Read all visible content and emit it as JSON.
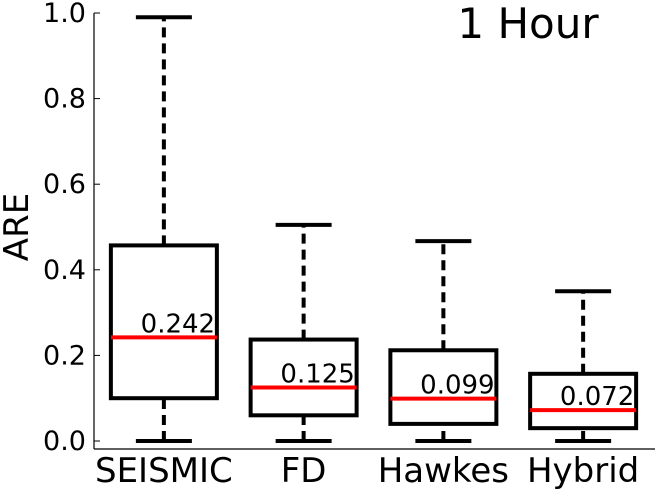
{
  "chart_data": {
    "type": "box",
    "title": "1 Hour",
    "xlabel": "",
    "ylabel": "ARE",
    "ylim": [
      0.0,
      1.0
    ],
    "yticks": [
      "0.0",
      "0.2",
      "0.4",
      "0.6",
      "0.8",
      "1.0"
    ],
    "grid": false,
    "categories": [
      "SEISMIC",
      "FD",
      "Hawkes",
      "Hybrid"
    ],
    "series": [
      {
        "category": "SEISMIC",
        "whisker_low": 0.0,
        "q1": 0.1,
        "median": 0.242,
        "q3": 0.457,
        "whisker_high": 0.99,
        "median_label": "0.242"
      },
      {
        "category": "FD",
        "whisker_low": 0.0,
        "q1": 0.06,
        "median": 0.125,
        "q3": 0.237,
        "whisker_high": 0.505,
        "median_label": "0.125"
      },
      {
        "category": "Hawkes",
        "whisker_low": 0.0,
        "q1": 0.04,
        "median": 0.099,
        "q3": 0.212,
        "whisker_high": 0.467,
        "median_label": "0.099"
      },
      {
        "category": "Hybrid",
        "whisker_low": 0.0,
        "q1": 0.03,
        "median": 0.072,
        "q3": 0.157,
        "whisker_high": 0.35,
        "median_label": "0.072"
      }
    ],
    "colors": {
      "box": "#000000",
      "median": "#ff0000",
      "whisker": "#000000"
    }
  }
}
